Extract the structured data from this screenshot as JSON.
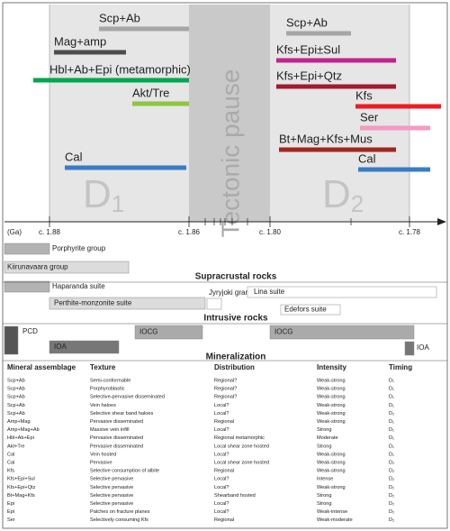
{
  "timeline": {
    "bars": [
      {
        "label": "Scp+Ab"
      },
      {
        "label": "Mag+amp"
      },
      {
        "label": "Hbl+Ab+Epi (metamorphic)"
      },
      {
        "label": "Akt/Tre"
      },
      {
        "label": "Cal"
      },
      {
        "label": "Scp+Ab"
      },
      {
        "label": "Kfs+Epi±Sul"
      },
      {
        "label": "Kfs+Epi+Qtz"
      },
      {
        "label": "Kfs"
      },
      {
        "label": "Ser"
      },
      {
        "label": "Bt+Mag+Kfs+Mus"
      },
      {
        "label": "Cal"
      }
    ],
    "pause": "Tectonic pause",
    "phases": [
      {
        "letter": "D",
        "sub": "1"
      },
      {
        "letter": "D",
        "sub": "2"
      }
    ],
    "axis": {
      "unit": "(Ga)",
      "ticks": [
        "c. 1.88",
        "c. 1.86",
        "c. 1.80",
        "c. 1.78"
      ]
    }
  },
  "units": {
    "items": [
      {
        "label": "Porphyrite group"
      },
      {
        "label": "Kiirunavaara group"
      },
      {
        "label": "Haparanda suite"
      },
      {
        "label": "Perthite-monzonite suite"
      },
      {
        "label": "Jyryjoki granite"
      },
      {
        "label": "Lina suite"
      },
      {
        "label": "Edefors suite"
      },
      {
        "label": "PCD"
      },
      {
        "label": "IOA"
      },
      {
        "label": "IOCG"
      },
      {
        "label": "IOCG"
      },
      {
        "label": "IOA"
      }
    ],
    "sections": [
      "Supracrustal rocks",
      "Intrusive rocks",
      "Mineralization"
    ]
  },
  "table": {
    "header": [
      "Mineral assemblage",
      "Texture",
      "Distribution",
      "Intensity",
      "Timing"
    ],
    "rows": [
      [
        "Scp+Ab",
        "Semi-conformable",
        "Regional?",
        "Weak-strong",
        "D₁"
      ],
      [
        "Scp+Ab",
        "Porphyroblastic",
        "Regional?",
        "Weak-strong",
        "D₁"
      ],
      [
        "Scp+Ab",
        "Selective-pervasive disseminated",
        "Regional?",
        "Weak-strong",
        "D₁"
      ],
      [
        "Scp+Ab",
        "Vein haloes",
        "Local?",
        "Weak-strong",
        "D₁"
      ],
      [
        "Scp+Ab",
        "Selective shear band haloes",
        "Local?",
        "Weak-strong",
        "D₂"
      ],
      [
        "Amp+Mag",
        "Pervasive disseminated",
        "Regional",
        "Weak-strong",
        "D₁"
      ],
      [
        "Amp+Mag+Ab",
        "Massive vein infill",
        "Local?",
        "Strong",
        "D₁"
      ],
      [
        "Hbl+Ab+Epi",
        "Pervasive disseminated",
        "Regional metamorphic",
        "Moderate",
        "D₁"
      ],
      [
        "Akt+Tre",
        "Pervasive disseminated",
        "Local shear zone hosted",
        "Strong",
        "D₁"
      ],
      [
        "Cal",
        "Vein hosted",
        "Local?",
        "Weak-strong",
        "D₁"
      ],
      [
        "Cal",
        "Pervasive",
        "Local shear zone hosted",
        "Weak-strong",
        "D₂"
      ],
      [
        "Kfs",
        "Selective consumption of albite",
        "Regional",
        "Weak-strong",
        "D₂"
      ],
      [
        "Kfs+Epi+Sul",
        "Selective pervasive",
        "Local?",
        "Intense",
        "D₂"
      ],
      [
        "Kfs+Epi+Qtz",
        "Selective pervasive",
        "Local?",
        "Weak-strong",
        "D₂"
      ],
      [
        "Bt+Mag+Kfs",
        "Selective pervasive",
        "Shearband hosted",
        "Strong",
        "D₂"
      ],
      [
        "Epi",
        "Selective pervasive",
        "Local?",
        "Strong",
        "D₂"
      ],
      [
        "Epi",
        "Patches on fracture planes",
        "Local?",
        "Weak-intense",
        "D₂"
      ],
      [
        "Ser",
        "Selectively consuming Kfs",
        "Regional",
        "Weak-moderate",
        "D₂"
      ]
    ]
  }
}
